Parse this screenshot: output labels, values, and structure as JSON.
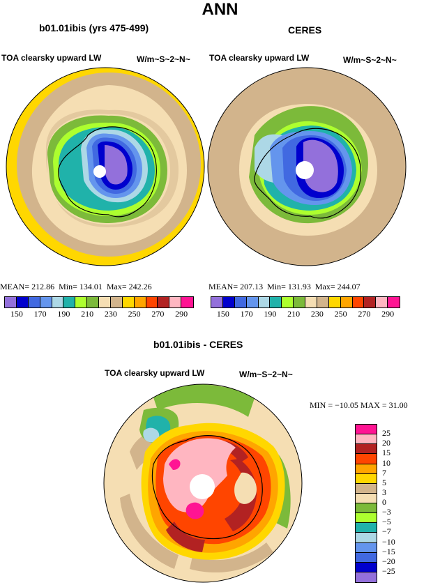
{
  "chart_data": [
    {
      "type": "polar-contour-map",
      "title": "b01.01ibis (yrs 475-499)",
      "subtitle_left": "TOA clearsky upward LW",
      "units": "W/m~S~2~N~",
      "stats": {
        "mean_label": "MEAN=",
        "mean": "212.86",
        "min_label": "Min=",
        "min": "134.01",
        "max_label": "Max=",
        "max": "242.26"
      },
      "levels": [
        150,
        160,
        170,
        180,
        190,
        200,
        210,
        220,
        230,
        240,
        250,
        260,
        270,
        280,
        290
      ],
      "tick_labels": [
        "150",
        "170",
        "190",
        "210",
        "230",
        "250",
        "270",
        "290"
      ]
    },
    {
      "type": "polar-contour-map",
      "title": "CERES",
      "subtitle_left": "TOA clearsky upward LW",
      "units": "W/m~S~2~N~",
      "stats": {
        "mean_label": "MEAN=",
        "mean": "207.13",
        "min_label": "Min=",
        "min": "131.93",
        "max_label": "Max=",
        "max": "244.07"
      },
      "levels": [
        150,
        160,
        170,
        180,
        190,
        200,
        210,
        220,
        230,
        240,
        250,
        260,
        270,
        280,
        290
      ],
      "tick_labels": [
        "150",
        "170",
        "190",
        "210",
        "230",
        "250",
        "270",
        "290"
      ]
    },
    {
      "type": "polar-contour-map",
      "title": "b01.01ibis - CERES",
      "subtitle_left": "TOA clearsky upward LW",
      "units": "W/m~S~2~N~",
      "stats_text": "MIN = −10.05  MAX =   31.00",
      "levels": [
        -25,
        -20,
        -15,
        -10,
        -7,
        -5,
        -3,
        0,
        3,
        5,
        7,
        10,
        15,
        20,
        25
      ],
      "tick_labels": [
        "25",
        "20",
        "15",
        "10",
        "7",
        "5",
        "3",
        "0",
        "−3",
        "−5",
        "−7",
        "−10",
        "−15",
        "−20",
        "−25"
      ]
    }
  ],
  "header": {
    "title": "ANN"
  },
  "colors": {
    "abs_scale": [
      "#9370db",
      "#0000cd",
      "#4169e1",
      "#6495ed",
      "#add8e6",
      "#20b2aa",
      "#adff2f",
      "#7cba3a",
      "#f5deb3",
      "#d2b48c",
      "#ffd700",
      "#ffa500",
      "#ff4500",
      "#b22222",
      "#ffb6c1",
      "#ff1493"
    ],
    "diff_scale": [
      "#ff1493",
      "#ffb6c1",
      "#b22222",
      "#ff4500",
      "#ffa500",
      "#ffd700",
      "#d2b48c",
      "#f5deb3",
      "#7cba3a",
      "#adff2f",
      "#20b2aa",
      "#add8e6",
      "#6495ed",
      "#4169e1",
      "#0000cd",
      "#9370db"
    ]
  }
}
